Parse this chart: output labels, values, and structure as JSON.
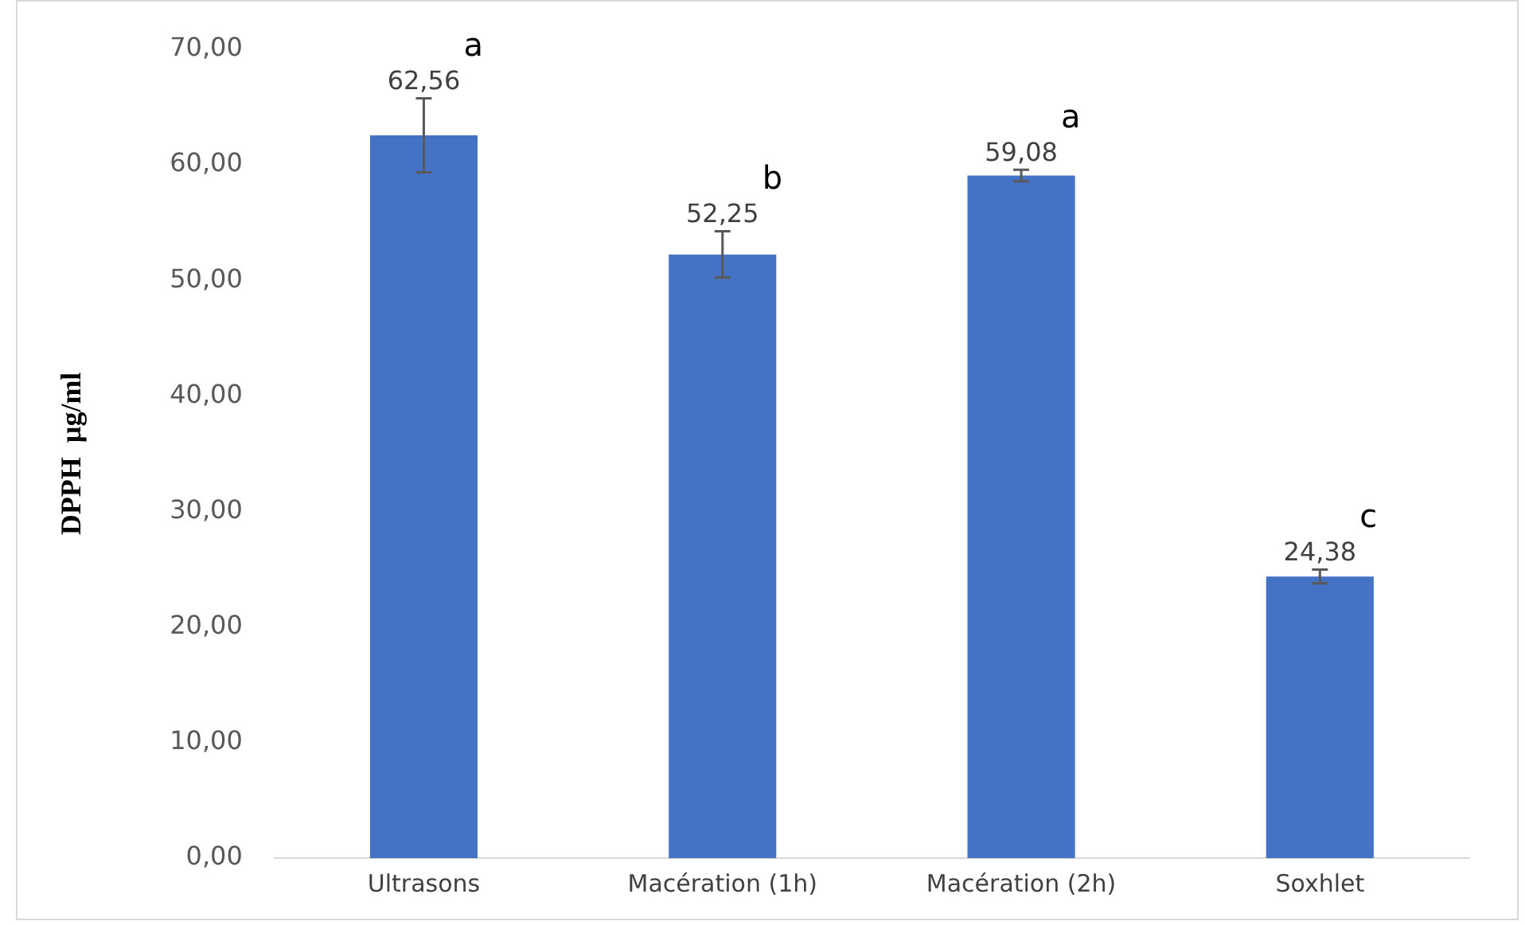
{
  "chart_data": {
    "type": "bar",
    "ylabel": "DPPH  µg/ml",
    "categories": [
      "Ultrasons",
      "Macération (1h)",
      "Macération (2h)",
      "Soxhlet"
    ],
    "values": [
      62.56,
      52.25,
      59.08,
      24.38
    ],
    "value_labels": [
      "62,56",
      "52,25",
      "59,08",
      "24,38"
    ],
    "errors": [
      3.2,
      2.0,
      0.5,
      0.6
    ],
    "color": "#4472c4",
    "ylim": [
      0,
      70
    ],
    "yticks": [
      {
        "value": 0,
        "label": "0,00"
      },
      {
        "value": 10,
        "label": "10,00"
      },
      {
        "value": 20,
        "label": "20,00"
      },
      {
        "value": 30,
        "label": "30,00"
      },
      {
        "value": 40,
        "label": "40,00"
      },
      {
        "value": 50,
        "label": "50,00"
      },
      {
        "value": 60,
        "label": "60,00"
      },
      {
        "value": 70,
        "label": "70,00"
      }
    ],
    "grid": false,
    "legend": false,
    "annotations": [
      "a",
      "b",
      "a",
      "c"
    ]
  }
}
